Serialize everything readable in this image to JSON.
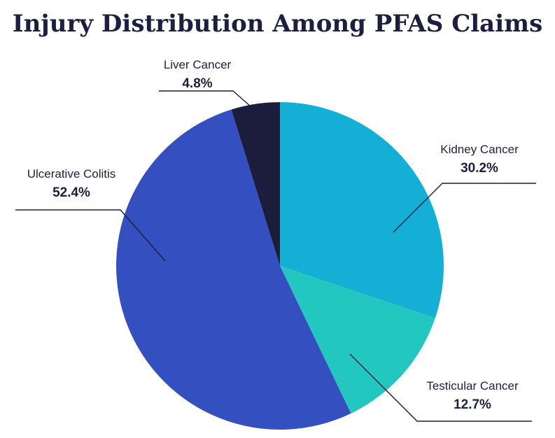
{
  "chart_data": {
    "type": "pie",
    "title": "Injury Distribution Among PFAS Claims",
    "slices": [
      {
        "label": "Kidney Cancer",
        "value": 30.2,
        "display": "30.2%",
        "color": "#14afd4"
      },
      {
        "label": "Testicular Cancer",
        "value": 12.7,
        "display": "12.7%",
        "color": "#22c7bf"
      },
      {
        "label": "Ulcerative Colitis",
        "value": 52.4,
        "display": "52.4%",
        "color": "#344fbf"
      },
      {
        "label": "Liver Cancer",
        "value": 4.8,
        "display": "4.8%",
        "color": "#1c1d3c"
      }
    ]
  }
}
